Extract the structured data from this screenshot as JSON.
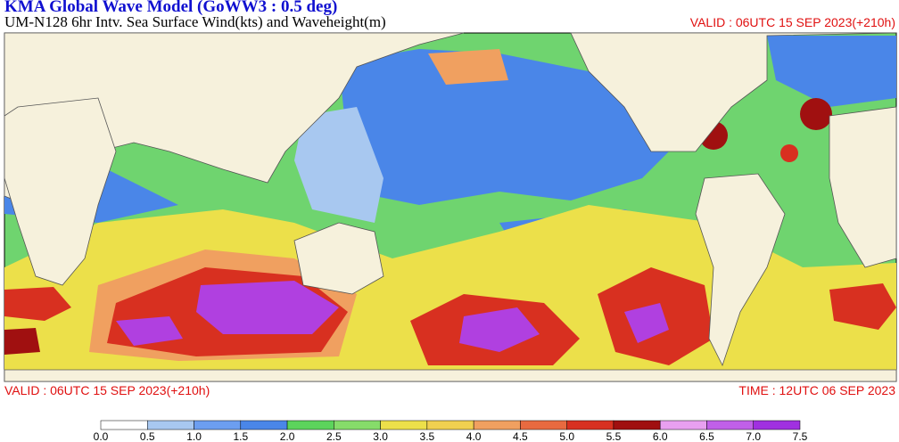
{
  "header": {
    "title": "KMA  Global Wave Model (GoWW3 : 0.5 deg)",
    "subtitle": "UM-N128  6hr Intv. Sea Surface Wind(kts) and Waveheight(m)",
    "valid": "VALID : 06UTC 15 SEP 2023(+210h)"
  },
  "footer": {
    "valid": "VALID : 06UTC 15 SEP 2023(+210h)",
    "time": "TIME : 12UTC 06 SEP 2023"
  },
  "colorbar": {
    "colors": [
      "#ffffff",
      "#a8c8f0",
      "#6c9ef0",
      "#4a86e8",
      "#5cd45c",
      "#86dc6a",
      "#ece04a",
      "#f0d050",
      "#f0a060",
      "#e86a40",
      "#d83020",
      "#a01010",
      "#e8a0f0",
      "#c060e8",
      "#a030e0"
    ],
    "labels": [
      "0.0",
      "0.5",
      "1.0",
      "1.5",
      "2.0",
      "2.5",
      "3.0",
      "3.5",
      "4.0",
      "4.5",
      "5.0",
      "5.5",
      "6.0",
      "6.5",
      "7.0",
      "7.5"
    ]
  }
}
